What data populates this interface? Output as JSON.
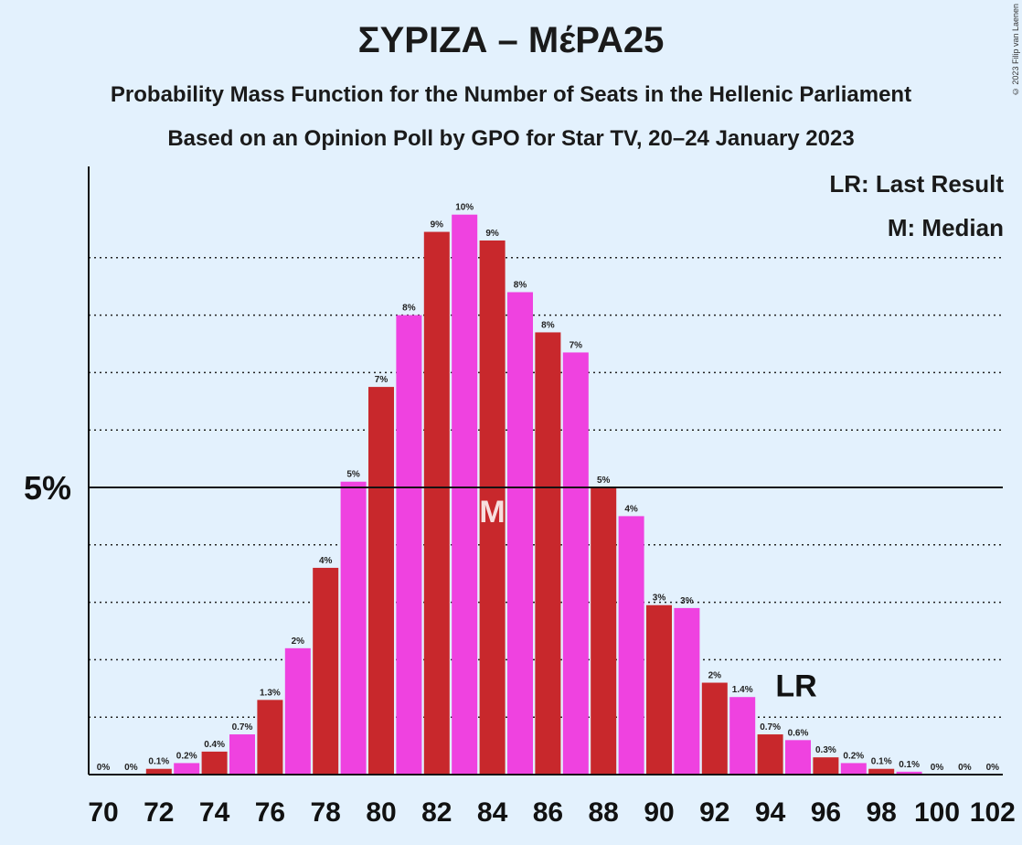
{
  "header": {
    "title": "ΣΥΡΙΖΑ – ΜέΡΑ25",
    "subtitle1": "Probability Mass Function for the Number of Seats in the Hellenic Parliament",
    "subtitle2": "Based on an Opinion Poll by GPO for Star TV, 20–24 January 2023",
    "copyright": "© 2023 Filip van Laenen"
  },
  "legend": {
    "lr": "LR: Last Result",
    "median": "M: Median"
  },
  "colors": {
    "background": "#e3f1fd",
    "bar_even": "#c8282c",
    "bar_odd": "#ef42e0"
  },
  "chart_data": {
    "type": "bar",
    "x": [
      70,
      71,
      72,
      73,
      74,
      75,
      76,
      77,
      78,
      79,
      80,
      81,
      82,
      83,
      84,
      85,
      86,
      87,
      88,
      89,
      90,
      91,
      92,
      93,
      94,
      95,
      96,
      97,
      98,
      99,
      100,
      101,
      102
    ],
    "values": [
      0,
      0,
      0.1,
      0.2,
      0.4,
      0.7,
      1.3,
      2.2,
      3.6,
      5.1,
      6.75,
      8.0,
      9.45,
      9.75,
      9.3,
      8.4,
      7.7,
      7.35,
      5.0,
      4.5,
      2.95,
      2.9,
      1.6,
      1.35,
      0.7,
      0.6,
      0.3,
      0.2,
      0.1,
      0.05,
      0,
      0,
      0
    ],
    "labels": [
      "0%",
      "0%",
      "0.1%",
      "0.2%",
      "0.4%",
      "0.7%",
      "1.3%",
      "2%",
      "4%",
      "5%",
      "7%",
      "8%",
      "9%",
      "10%",
      "9%",
      "8%",
      "8%",
      "7%",
      "5%",
      "4%",
      "3%",
      "3%",
      "2%",
      "1.4%",
      "0.7%",
      "0.6%",
      "0.3%",
      "0.2%",
      "0.1%",
      "0.1%",
      "0%",
      "0%",
      "0%"
    ],
    "xticks": [
      "70",
      "72",
      "74",
      "76",
      "78",
      "80",
      "82",
      "84",
      "86",
      "88",
      "90",
      "92",
      "94",
      "96",
      "98",
      "100",
      "102"
    ],
    "yticks": [
      "5%"
    ],
    "ylim": [
      0,
      10.6
    ],
    "gridlines": [
      1,
      2,
      3,
      4,
      6,
      7,
      8,
      9
    ],
    "median_seat": 84,
    "median_marker": "M",
    "last_result_seat": 95,
    "last_result_marker": "LR"
  }
}
